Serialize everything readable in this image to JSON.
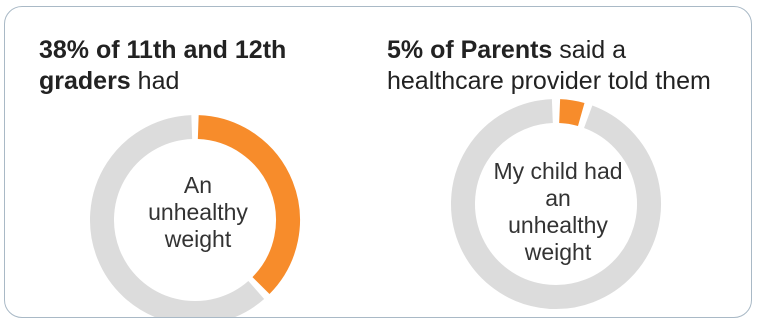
{
  "chart_data": [
    {
      "type": "pie",
      "title_bold": "38% of 11th and 12th graders",
      "title_rest": " had",
      "center_label": "An unhealthy weight",
      "values": [
        38,
        62
      ],
      "colors": [
        "#f78c2b",
        "#dcdcdc"
      ]
    },
    {
      "type": "pie",
      "title_bold": "5% of Parents",
      "title_rest": " said a healthcare provider told them",
      "center_label": "My child had an unhealthy weight",
      "values": [
        5,
        95
      ],
      "colors": [
        "#f78c2b",
        "#dcdcdc"
      ]
    }
  ]
}
